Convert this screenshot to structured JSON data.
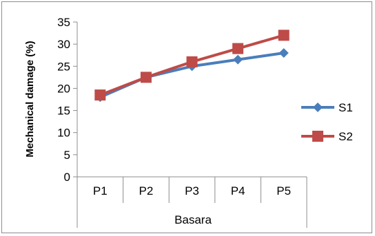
{
  "chart_data": {
    "type": "line",
    "categories": [
      "P1",
      "P2",
      "P3",
      "P4",
      "P5"
    ],
    "group_label": "Basara",
    "series": [
      {
        "name": "S1",
        "color": "#4a7ebb",
        "marker": "diamond",
        "values": [
          18,
          22.5,
          25,
          26.5,
          28
        ]
      },
      {
        "name": "S2",
        "color": "#be4b48",
        "marker": "square",
        "values": [
          18.5,
          22.5,
          26,
          29,
          32
        ]
      }
    ],
    "ylabel": "Mechanical damage (%)",
    "ylim": [
      0,
      35
    ],
    "yticks": [
      0,
      5,
      10,
      15,
      20,
      25,
      30,
      35
    ],
    "legend_position": "right",
    "grid": false
  }
}
